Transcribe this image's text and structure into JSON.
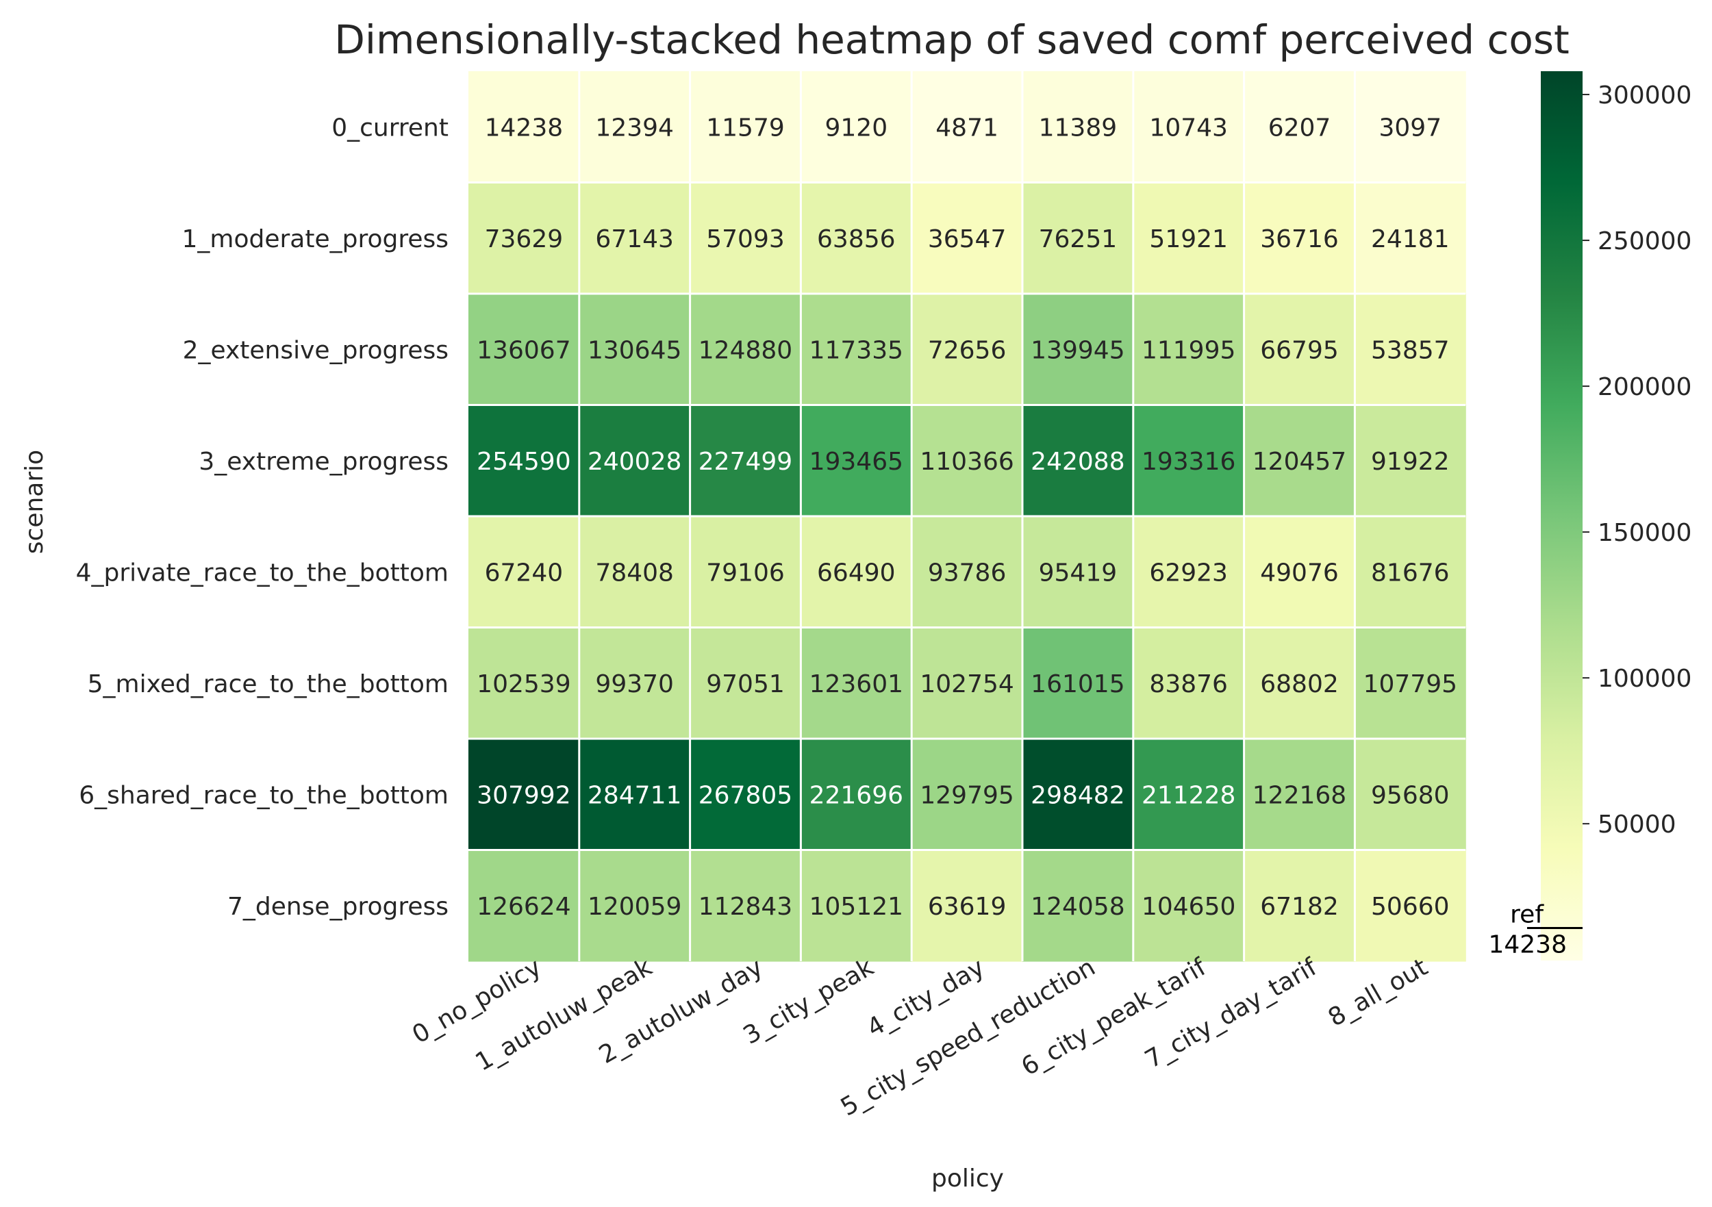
{
  "chart_data": {
    "type": "heatmap",
    "title": "Dimensionally-stacked heatmap of saved comf perceived cost",
    "xlabel": "policy",
    "ylabel": "scenario",
    "x_categories": [
      "0_no_policy",
      "1_autoluw_peak",
      "2_autoluw_day",
      "3_city_peak",
      "4_city_day",
      "5_city_speed_reduction",
      "6_city_peak_tarif",
      "7_city_day_tarif",
      "8_all_out"
    ],
    "y_categories": [
      "0_current",
      "1_moderate_progress",
      "2_extensive_progress",
      "3_extreme_progress",
      "4_private_race_to_the_bottom",
      "5_mixed_race_to_the_bottom",
      "6_shared_race_to_the_bottom",
      "7_dense_progress"
    ],
    "values": [
      [
        14238,
        12394,
        11579,
        9120,
        4871,
        11389,
        10743,
        6207,
        3097
      ],
      [
        73629,
        67143,
        57093,
        63856,
        36547,
        76251,
        51921,
        36716,
        24181
      ],
      [
        136067,
        130645,
        124880,
        117335,
        72656,
        139945,
        111995,
        66795,
        53857
      ],
      [
        254590,
        240028,
        227499,
        193465,
        110366,
        242088,
        193316,
        120457,
        91922
      ],
      [
        67240,
        78408,
        79106,
        66490,
        93786,
        95419,
        62923,
        49076,
        81676
      ],
      [
        102539,
        99370,
        97051,
        123601,
        102754,
        161015,
        83876,
        68802,
        107795
      ],
      [
        307992,
        284711,
        267805,
        221696,
        129795,
        298482,
        211228,
        122168,
        95680
      ],
      [
        126624,
        120059,
        112843,
        105121,
        63619,
        124058,
        104650,
        67182,
        50660
      ]
    ],
    "colormap": "YlGn",
    "colorbar": {
      "min": 3097,
      "max": 307992,
      "ticks": [
        50000,
        100000,
        150000,
        200000,
        250000,
        300000
      ],
      "tick_labels": [
        "50000",
        "100000",
        "150000",
        "200000",
        "250000",
        "300000"
      ],
      "reference": {
        "label": "ref",
        "value": 14238
      }
    },
    "colors": {
      "text_dark": "#262626",
      "text_light": "#ffffff",
      "separator": "#ffffff",
      "stops": [
        "#ffffe5",
        "#f7fcb9",
        "#d9f0a3",
        "#addd8e",
        "#78c679",
        "#41ab5d",
        "#238443",
        "#006837",
        "#004529"
      ]
    }
  }
}
